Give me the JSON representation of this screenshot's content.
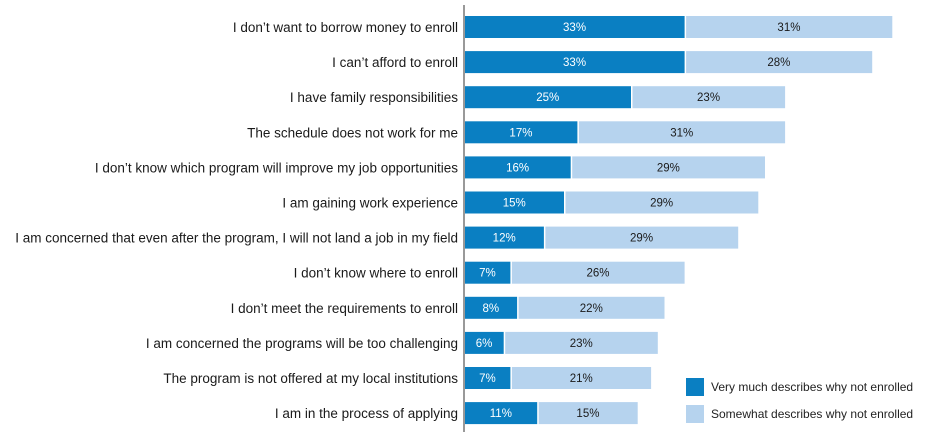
{
  "chart_data": {
    "type": "bar",
    "orientation": "horizontal",
    "stacked": true,
    "categories": [
      "I don’t want to borrow money to enroll",
      "I can’t afford to enroll",
      "I have family responsibilities",
      "The schedule does not work for me",
      "I don’t know which program will improve my job opportunities",
      "I am gaining work experience",
      "I am concerned that even after the program, I will not land a job in my field",
      "I don’t know where to enroll",
      "I don’t meet the requirements to enroll",
      "I am concerned the programs will be too challenging",
      "The program is not offered at my local institutions",
      "I am in the process of applying"
    ],
    "series": [
      {
        "name": "Very much describes why not enrolled",
        "color": "#0a7fc2",
        "values": [
          33,
          33,
          25,
          17,
          16,
          15,
          12,
          7,
          8,
          6,
          7,
          11
        ],
        "labels": [
          "33%",
          "33%",
          "25%",
          "17%",
          "16%",
          "15%",
          "12%",
          "7%",
          "8%",
          "6%",
          "7%",
          "11%"
        ]
      },
      {
        "name": "Somewhat describes why not enrolled",
        "color": "#b6d3ee",
        "values": [
          31,
          28,
          23,
          31,
          29,
          29,
          29,
          26,
          22,
          23,
          21,
          15
        ],
        "labels": [
          "31%",
          "28%",
          "23%",
          "31%",
          "29%",
          "29%",
          "29%",
          "26%",
          "22%",
          "23%",
          "21%",
          "15%"
        ]
      }
    ],
    "xlim": [
      0,
      64
    ],
    "grid": false,
    "legend_position": "bottom-right"
  }
}
